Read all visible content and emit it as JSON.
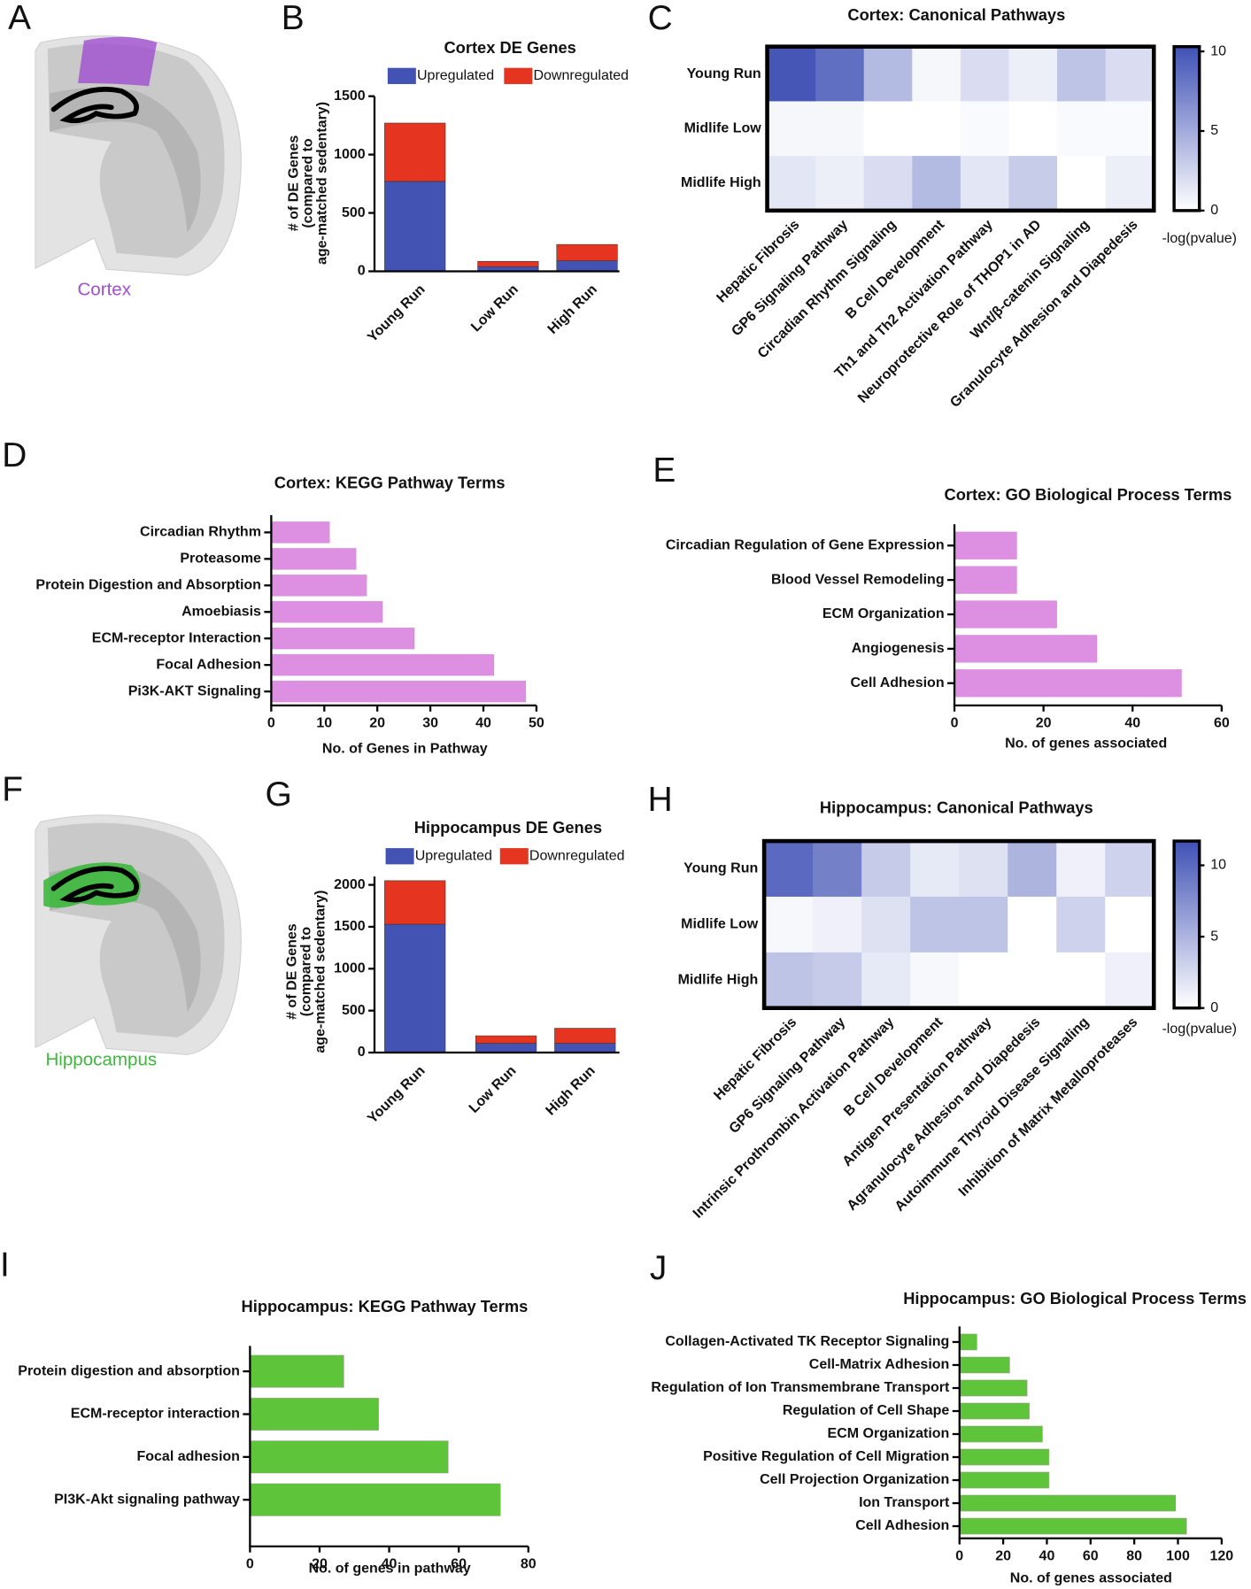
{
  "chart_data": [
    {
      "type": "illustration",
      "panel": "A",
      "label": "Cortex",
      "region": "cortex",
      "color": "#a04fd0"
    },
    {
      "type": "stacked_bar",
      "panel": "B",
      "title": "Cortex DE Genes",
      "ylabel": [
        "# of DE Genes",
        "(compared to",
        "age-matched sedentary)"
      ],
      "categories": [
        "Young Run",
        "Low Run",
        "High Run"
      ],
      "series": [
        {
          "name": "Upregulated",
          "color": "#4353b4",
          "values": [
            770,
            40,
            90
          ]
        },
        {
          "name": "Downregulated",
          "color": "#e5341f",
          "values": [
            500,
            45,
            140
          ]
        }
      ],
      "ylim": [
        0,
        1500
      ],
      "yticks": [
        0,
        500,
        1000,
        1500
      ]
    },
    {
      "type": "heatmap",
      "panel": "C",
      "title": "Cortex: Canonical Pathways",
      "rows": [
        "Young Run",
        "Midlife Low",
        "Midlife High"
      ],
      "columns": [
        "Hepatic Fibrosis",
        "GP6 Signaling Pathway",
        "Circadian Rhythm Signaling",
        "B Cell Development",
        "Th1 and Th2 Activation Pathway",
        "Neuroprotective Role of THOP1 in AD",
        "Wnt/β-catenin Signaling",
        "Granulocyte Adhesion and Diapedesis"
      ],
      "values": [
        [
          10,
          8.5,
          4,
          0.5,
          2,
          1,
          3.5,
          2
        ],
        [
          0.5,
          0.5,
          0,
          0,
          0.3,
          0,
          0.3,
          0.3
        ],
        [
          1.5,
          1,
          2,
          4,
          1.5,
          3,
          0,
          1
        ]
      ],
      "color": "#3f51b5",
      "colorbar_label": "-log(pvalue)",
      "clim": [
        0,
        10.3
      ],
      "cticks": [
        0,
        5,
        10
      ]
    },
    {
      "type": "hbar",
      "panel": "D",
      "title": "Cortex: KEGG Pathway Terms",
      "xlabel": "No. of Genes in Pathway",
      "categories": [
        "Circadian Rhythm",
        "Proteasome",
        "Protein Digestion and Absorption",
        "Amoebiasis",
        "ECM-receptor Interaction",
        "Focal Adhesion",
        "Pi3K-AKT Signaling"
      ],
      "values": [
        11,
        16,
        18,
        21,
        27,
        42,
        48
      ],
      "color": "#dd8fe2",
      "xlim": [
        0,
        50
      ],
      "xticks": [
        0,
        10,
        20,
        30,
        40,
        50
      ]
    },
    {
      "type": "hbar",
      "panel": "E",
      "title": "Cortex: GO Biological Process Terms",
      "xlabel": "No. of genes associated",
      "categories": [
        "Circadian Regulation of Gene Expression",
        "Blood Vessel Remodeling",
        "ECM Organization",
        "Angiogenesis",
        "Cell Adhesion"
      ],
      "values": [
        14,
        14,
        23,
        32,
        51
      ],
      "color": "#dd8fe2",
      "xlim": [
        0,
        60
      ],
      "xticks": [
        0,
        20,
        40,
        60
      ]
    },
    {
      "type": "illustration",
      "panel": "F",
      "label": "Hippocampus",
      "region": "hippocampus",
      "color": "#3cb83c"
    },
    {
      "type": "stacked_bar",
      "panel": "G",
      "title": "Hippocampus DE Genes",
      "ylabel": [
        "# of DE Genes",
        "(compared to",
        "age-matched sedentary)"
      ],
      "categories": [
        "Young Run",
        "Low Run",
        "High Run"
      ],
      "series": [
        {
          "name": "Upregulated",
          "color": "#4353b4",
          "values": [
            1530,
            110,
            110
          ]
        },
        {
          "name": "Downregulated",
          "color": "#e5341f",
          "values": [
            520,
            90,
            180
          ]
        }
      ],
      "ylim": [
        0,
        2100
      ],
      "yticks": [
        0,
        500,
        1000,
        1500,
        2000
      ]
    },
    {
      "type": "heatmap",
      "panel": "H",
      "title": "Hippocampus: Canonical Pathways",
      "rows": [
        "Young Run",
        "Midlife Low",
        "Midlife High"
      ],
      "columns": [
        "Hepatic Fibrosis",
        "GP6 Signaling Pathway",
        "Intrinsic Prothrombin Activation Pathway",
        "B Cell Development",
        "Antigen Presentation Pathway",
        "Agranulocyte Adhesion and Diapedesis",
        "Autoimmune Thyroid Disease Signaling",
        "Inhibition of Matrix Metalloproteases"
      ],
      "values": [
        [
          10,
          8.5,
          3.5,
          1.5,
          2,
          5,
          1,
          3
        ],
        [
          0.5,
          1,
          2,
          4,
          4,
          0,
          3,
          0
        ],
        [
          4,
          3.5,
          1.5,
          0.5,
          0,
          0,
          0,
          1
        ]
      ],
      "color": "#3f51b5",
      "colorbar_label": "-log(pvalue)",
      "clim": [
        0,
        11.7
      ],
      "cticks": [
        0,
        5,
        10
      ]
    },
    {
      "type": "hbar",
      "panel": "I",
      "title": "Hippocampus: KEGG Pathway Terms",
      "xlabel": "No. of genes in pathway",
      "categories": [
        "Protein digestion and absorption",
        "ECM-receptor interaction",
        "Focal adhesion",
        "PI3K-Akt signaling pathway"
      ],
      "values": [
        27,
        37,
        57,
        72
      ],
      "color": "#5ec43a",
      "xlim": [
        0,
        80
      ],
      "xticks": [
        0,
        20,
        40,
        60,
        80
      ]
    },
    {
      "type": "hbar",
      "panel": "J",
      "title": "Hippocampus: GO Biological Process Terms",
      "xlabel": "No. of genes associated",
      "categories": [
        "Collagen-Activated TK Receptor Signaling",
        "Cell-Matrix Adhesion",
        "Regulation of Ion Transmembrane Transport",
        "Regulation of Cell Shape",
        "ECM Organization",
        "Positive Regulation of Cell Migration",
        "Cell Projection Organization",
        "Ion Transport",
        "Cell Adhesion"
      ],
      "values": [
        8,
        23,
        31,
        32,
        38,
        41,
        41,
        99,
        104
      ],
      "color": "#5ec43a",
      "xlim": [
        0,
        120
      ],
      "xticks": [
        0,
        20,
        40,
        60,
        80,
        100,
        120
      ]
    }
  ]
}
